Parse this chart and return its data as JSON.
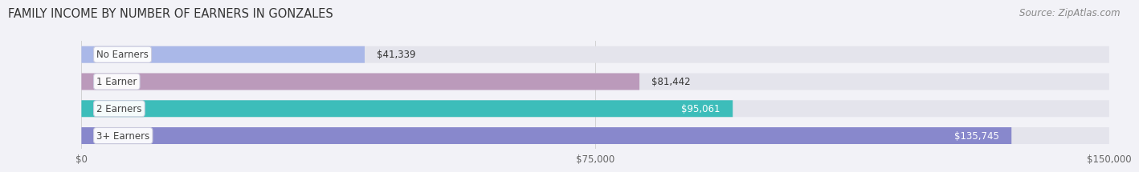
{
  "title": "FAMILY INCOME BY NUMBER OF EARNERS IN GONZALES",
  "source": "Source: ZipAtlas.com",
  "categories": [
    "No Earners",
    "1 Earner",
    "2 Earners",
    "3+ Earners"
  ],
  "values": [
    41339,
    81442,
    95061,
    135745
  ],
  "bar_colors": [
    "#aab8e8",
    "#bb9abb",
    "#3dbdba",
    "#8888cc"
  ],
  "bar_labels": [
    "$41,339",
    "$81,442",
    "$95,061",
    "$135,745"
  ],
  "label_colors": [
    "#333333",
    "#333333",
    "#ffffff",
    "#ffffff"
  ],
  "xlim": [
    0,
    150000
  ],
  "xtick_values": [
    0,
    75000,
    150000
  ],
  "xtick_labels": [
    "$0",
    "$75,000",
    "$150,000"
  ],
  "background_color": "#f2f2f7",
  "bar_bg_color": "#e4e4ec",
  "title_fontsize": 10.5,
  "source_fontsize": 8.5,
  "label_fontsize": 8.5,
  "category_fontsize": 8.5
}
